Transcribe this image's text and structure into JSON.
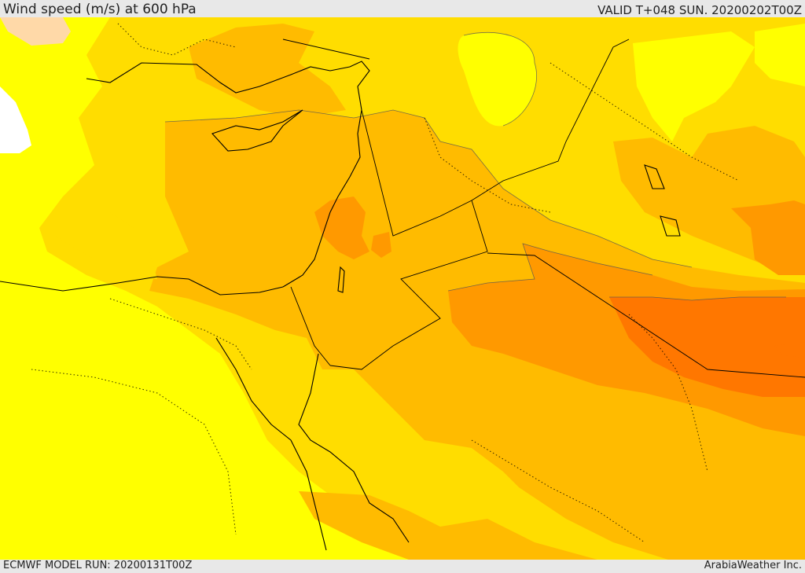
{
  "header": {
    "title": "Wind speed (m/s) at 600 hPa",
    "valid": "VALID T+048 SUN. 20200202T00Z"
  },
  "footer": {
    "model_run": "ECMWF MODEL RUN: 20200131T00Z",
    "credit": "ArabiaWeather Inc."
  },
  "colors": {
    "level_1": "#ffffff",
    "level_2": "#ffff00",
    "level_3": "#ffdd00",
    "level_4": "#ffbb00",
    "level_5": "#ff9900",
    "level_6": "#ff7700",
    "level_7": "#ffd9a8"
  }
}
